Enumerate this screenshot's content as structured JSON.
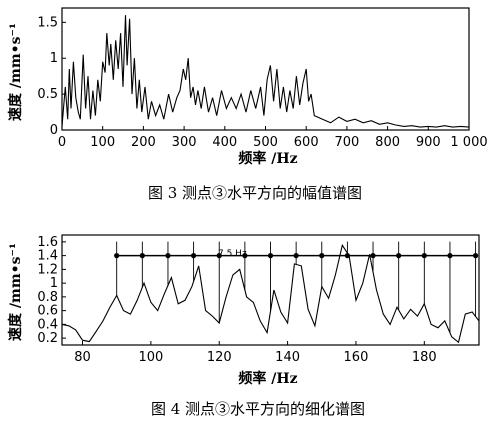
{
  "chart_data": [
    {
      "type": "line",
      "xlabel": "频率 /Hz",
      "ylabel": "速度 /mm•s⁻¹",
      "xlim": [
        0,
        1000
      ],
      "ylim": [
        0,
        1.7
      ],
      "x_ticks": [
        "0",
        "100",
        "200",
        "300",
        "400",
        "500",
        "600",
        "700",
        "800",
        "900",
        "1 000"
      ],
      "y_ticks": [
        "0",
        "0.5",
        "1",
        "1.5"
      ],
      "caption": "图 3   测点③水平方向的幅值谱图",
      "series": [
        {
          "x": [
            0,
            8,
            14,
            18,
            22,
            28,
            34,
            40,
            45,
            52,
            58,
            64,
            70,
            76,
            82,
            88,
            94,
            100,
            106,
            110,
            116,
            120,
            126,
            132,
            138,
            144,
            150,
            156,
            160,
            166,
            172,
            178,
            184,
            190,
            196,
            204,
            212,
            220,
            230,
            240,
            250,
            262,
            272,
            282,
            290,
            298,
            304,
            310,
            316,
            322,
            328,
            334,
            342,
            350,
            360,
            370,
            380,
            392,
            404,
            416,
            428,
            440,
            452,
            464,
            476,
            488,
            496,
            504,
            512,
            520,
            528,
            536,
            544,
            552,
            560,
            568,
            576,
            584,
            592,
            600,
            606,
            612,
            620,
            640,
            660,
            680,
            700,
            720,
            740,
            760,
            780,
            800,
            820,
            840,
            860,
            880,
            900,
            920,
            940,
            960,
            980,
            1000
          ],
          "y": [
            0.05,
            0.6,
            0.15,
            0.85,
            0.3,
            0.95,
            0.45,
            0.25,
            0.15,
            1.05,
            0.3,
            0.75,
            0.15,
            0.55,
            0.2,
            0.7,
            0.4,
            0.95,
            0.8,
            1.35,
            0.9,
            1.2,
            0.7,
            1.25,
            0.85,
            1.35,
            0.6,
            1.6,
            0.9,
            1.55,
            0.5,
            1.0,
            0.3,
            0.7,
            0.25,
            0.6,
            0.15,
            0.4,
            0.2,
            0.35,
            0.15,
            0.5,
            0.25,
            0.45,
            0.55,
            0.85,
            0.7,
            1.0,
            0.45,
            0.6,
            0.35,
            0.55,
            0.3,
            0.6,
            0.25,
            0.45,
            0.2,
            0.55,
            0.3,
            0.45,
            0.3,
            0.5,
            0.25,
            0.55,
            0.3,
            0.6,
            0.2,
            0.7,
            0.9,
            0.4,
            0.85,
            0.3,
            0.6,
            0.25,
            0.55,
            0.3,
            0.75,
            0.35,
            0.65,
            0.85,
            0.4,
            0.5,
            0.2,
            0.15,
            0.1,
            0.18,
            0.12,
            0.15,
            0.1,
            0.13,
            0.08,
            0.1,
            0.07,
            0.05,
            0.06,
            0.04,
            0.05,
            0.04,
            0.06,
            0.04,
            0.05,
            0.04
          ]
        }
      ]
    },
    {
      "type": "line",
      "xlabel": "频率 /Hz",
      "ylabel": "速度 /mm•s⁻¹",
      "xlim": [
        74,
        196
      ],
      "ylim": [
        0.1,
        1.7
      ],
      "x_ticks": [
        "80",
        "100",
        "120",
        "140",
        "160",
        "180"
      ],
      "y_ticks": [
        "0.2",
        "0.4",
        "0.6",
        "0.8",
        "1",
        "1.2",
        "1.4",
        "1.6"
      ],
      "caption": "图 4   测点③水平方向的细化谱图",
      "annotation": "7.5 Hz",
      "series": [
        {
          "x": [
            74,
            76,
            78,
            80,
            82,
            84,
            86,
            88,
            90,
            92,
            94,
            96,
            98,
            100,
            102,
            104,
            106,
            108,
            110,
            112,
            114,
            116,
            118,
            120,
            122,
            124,
            126,
            128,
            130,
            132,
            134,
            136,
            138,
            140,
            142,
            144,
            146,
            148,
            150,
            152,
            154,
            156,
            158,
            160,
            162,
            164,
            166,
            168,
            170,
            172,
            174,
            176,
            178,
            180,
            182,
            184,
            186,
            188,
            190,
            192,
            194,
            196
          ],
          "y": [
            0.4,
            0.38,
            0.32,
            0.17,
            0.15,
            0.3,
            0.45,
            0.65,
            0.82,
            0.6,
            0.55,
            0.75,
            1.0,
            0.72,
            0.6,
            0.85,
            1.08,
            0.7,
            0.75,
            0.95,
            1.25,
            0.6,
            0.52,
            0.42,
            0.8,
            1.12,
            1.2,
            0.8,
            0.72,
            0.45,
            0.28,
            0.9,
            0.58,
            0.42,
            1.28,
            1.25,
            0.62,
            0.38,
            0.95,
            0.78,
            1.12,
            1.55,
            1.4,
            0.75,
            1.0,
            1.42,
            0.9,
            0.55,
            0.4,
            0.65,
            0.48,
            0.62,
            0.52,
            0.7,
            0.4,
            0.35,
            0.45,
            0.22,
            0.14,
            0.55,
            0.58,
            0.45
          ]
        }
      ],
      "harmonic_markers": {
        "level": 1.4,
        "x": [
          90,
          97.5,
          105,
          112.5,
          120,
          127.5,
          135,
          142.5,
          150,
          157.5,
          165,
          172.5,
          180,
          187.5,
          195
        ]
      }
    }
  ]
}
